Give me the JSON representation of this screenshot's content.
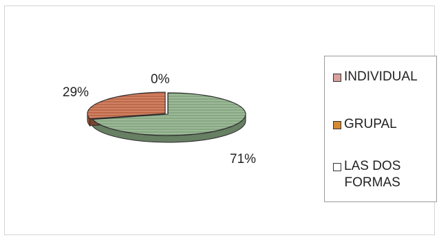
{
  "chart_data": {
    "type": "pie",
    "style": "3d-exploded",
    "categories": [
      "INDIVIDUAL",
      "GRUPAL",
      "LAS DOS FORMAS"
    ],
    "values": [
      71,
      29,
      0
    ],
    "data_labels": [
      "71%",
      "29%",
      "0%"
    ],
    "colors": [
      "#8fb08a",
      "#c9704e",
      "#e6e6e6"
    ],
    "legend_swatch_colors": [
      "#d9a0a0",
      "#d48a32",
      "#ffffff"
    ],
    "legend_position": "right",
    "title": ""
  },
  "legend": {
    "items": [
      {
        "label": "INDIVIDUAL"
      },
      {
        "label": "GRUPAL"
      },
      {
        "label": "LAS DOS\nFORMAS"
      }
    ]
  }
}
